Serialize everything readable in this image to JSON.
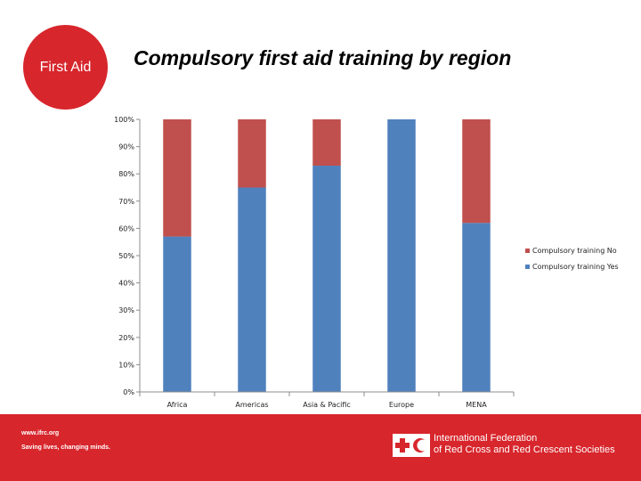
{
  "header": {
    "badge_text": "First Aid",
    "title": "Compulsory first aid training by region"
  },
  "footer": {
    "url": "www.ifrc.org",
    "slogan": "Saving lives, changing minds.",
    "org_line1": "International Federation",
    "org_line2": "of Red Cross and Red Crescent Societies"
  },
  "colors": {
    "brand_red": "#d7262c",
    "series_no": "#c0504d",
    "series_yes": "#4f81bd"
  },
  "chart_data": {
    "type": "bar",
    "stacked": true,
    "categories": [
      "Africa",
      "Americas",
      "Asia & Pacific",
      "Europe",
      "MENA"
    ],
    "series": [
      {
        "name": "Compulsory training Yes",
        "values": [
          57,
          75,
          83,
          100,
          62
        ],
        "color": "#4f81bd"
      },
      {
        "name": "Compulsory training No",
        "values": [
          43,
          25,
          17,
          0,
          38
        ],
        "color": "#c0504d"
      }
    ],
    "y_ticks": [
      "0%",
      "10%",
      "20%",
      "30%",
      "40%",
      "50%",
      "60%",
      "70%",
      "80%",
      "90%",
      "100%"
    ],
    "ylim": [
      0,
      100
    ],
    "legend": [
      "Compulsory training No",
      "Compulsory training Yes"
    ],
    "legend_position": "right",
    "grid": false
  }
}
